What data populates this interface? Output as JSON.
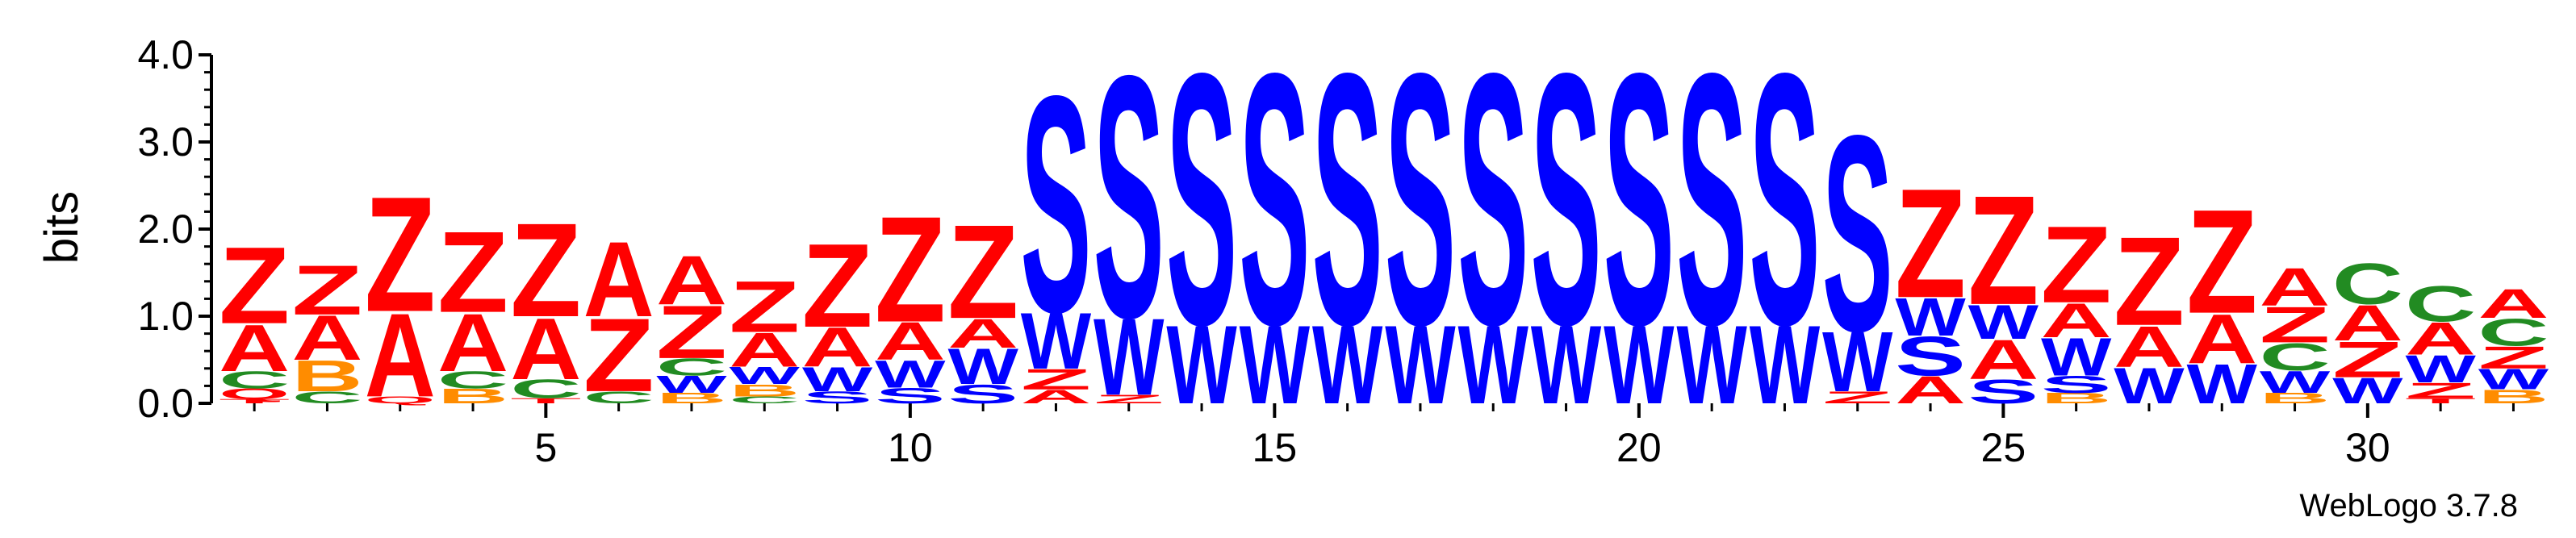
{
  "chart_data": {
    "type": "sequence-logo",
    "ylabel": "bits",
    "ylim": [
      0,
      4.0
    ],
    "y_ticks": [
      "0.0",
      "1.0",
      "2.0",
      "3.0",
      "4.0"
    ],
    "x_ticks": [
      5,
      10,
      15,
      20,
      25,
      30
    ],
    "x_tick_labels": [
      "5",
      "10",
      "15",
      "20",
      "25",
      "30"
    ],
    "footer": "WebLogo 3.7.8",
    "colors": {
      "Z": "#ff0000",
      "A": "#ff0000",
      "S": "#0000ff",
      "W": "#0000ff",
      "C": "#228b22",
      "B": "#ff8c00",
      "Q": "#ff0000",
      "T": "#ff0000",
      "E": "#ff8c00"
    },
    "positions": [
      {
        "pos": 1,
        "stack": [
          [
            "T",
            0.05
          ],
          [
            "Q",
            0.12
          ],
          [
            "C",
            0.2
          ],
          [
            "A",
            0.55
          ],
          [
            "Z",
            0.9
          ]
        ]
      },
      {
        "pos": 2,
        "stack": [
          [
            "C",
            0.14
          ],
          [
            "B",
            0.36
          ],
          [
            "A",
            0.52
          ],
          [
            "Z",
            0.58
          ]
        ]
      },
      {
        "pos": 3,
        "stack": [
          [
            "Q",
            0.08
          ],
          [
            "A",
            0.98
          ],
          [
            "Z",
            1.35
          ]
        ]
      },
      {
        "pos": 4,
        "stack": [
          [
            "B",
            0.17
          ],
          [
            "C",
            0.2
          ],
          [
            "A",
            0.68
          ],
          [
            "Z",
            0.95
          ]
        ]
      },
      {
        "pos": 5,
        "stack": [
          [
            "T",
            0.06
          ],
          [
            "C",
            0.22
          ],
          [
            "A",
            0.72
          ],
          [
            "Z",
            1.1
          ]
        ]
      },
      {
        "pos": 6,
        "stack": [
          [
            "C",
            0.14
          ],
          [
            "Z",
            0.86
          ],
          [
            "A",
            0.88
          ]
        ]
      },
      {
        "pos": 7,
        "stack": [
          [
            "B",
            0.12
          ],
          [
            "W",
            0.2
          ],
          [
            "C",
            0.2
          ],
          [
            "Z",
            0.62
          ],
          [
            "A",
            0.57
          ]
        ]
      },
      {
        "pos": 8,
        "stack": [
          [
            "C",
            0.08
          ],
          [
            "B",
            0.14
          ],
          [
            "W",
            0.2
          ],
          [
            "A",
            0.4
          ],
          [
            "Z",
            0.6
          ]
        ]
      },
      {
        "pos": 9,
        "stack": [
          [
            "S",
            0.14
          ],
          [
            "W",
            0.28
          ],
          [
            "A",
            0.46
          ],
          [
            "Z",
            0.98
          ]
        ]
      },
      {
        "pos": 10,
        "stack": [
          [
            "S",
            0.18
          ],
          [
            "W",
            0.32
          ],
          [
            "A",
            0.44
          ],
          [
            "Z",
            1.24
          ]
        ]
      },
      {
        "pos": 11,
        "stack": [
          [
            "S",
            0.22
          ],
          [
            "W",
            0.42
          ],
          [
            "A",
            0.34
          ],
          [
            "Z",
            1.1
          ]
        ]
      },
      {
        "pos": 12,
        "stack": [
          [
            "A",
            0.16
          ],
          [
            "Z",
            0.24
          ],
          [
            "W",
            0.66
          ],
          [
            "S",
            2.54
          ]
        ]
      },
      {
        "pos": 13,
        "stack": [
          [
            "Z",
            0.1
          ],
          [
            "W",
            0.9
          ],
          [
            "S",
            2.84
          ]
        ]
      },
      {
        "pos": 14,
        "stack": [
          [
            "W",
            0.92
          ],
          [
            "S",
            2.95
          ]
        ]
      },
      {
        "pos": 15,
        "stack": [
          [
            "W",
            0.92
          ],
          [
            "S",
            2.95
          ]
        ]
      },
      {
        "pos": 16,
        "stack": [
          [
            "W",
            0.92
          ],
          [
            "S",
            2.95
          ]
        ]
      },
      {
        "pos": 17,
        "stack": [
          [
            "W",
            0.92
          ],
          [
            "S",
            2.95
          ]
        ]
      },
      {
        "pos": 18,
        "stack": [
          [
            "W",
            0.92
          ],
          [
            "S",
            2.95
          ]
        ]
      },
      {
        "pos": 19,
        "stack": [
          [
            "W",
            0.92
          ],
          [
            "S",
            2.95
          ]
        ]
      },
      {
        "pos": 20,
        "stack": [
          [
            "W",
            0.92
          ],
          [
            "S",
            2.95
          ]
        ]
      },
      {
        "pos": 21,
        "stack": [
          [
            "W",
            0.92
          ],
          [
            "S",
            2.95
          ]
        ]
      },
      {
        "pos": 22,
        "stack": [
          [
            "W",
            0.92
          ],
          [
            "S",
            2.95
          ]
        ]
      },
      {
        "pos": 23,
        "stack": [
          [
            "Z",
            0.14
          ],
          [
            "W",
            0.7
          ],
          [
            "S",
            2.3
          ]
        ]
      },
      {
        "pos": 24,
        "stack": [
          [
            "A",
            0.32
          ],
          [
            "S",
            0.46
          ],
          [
            "W",
            0.44
          ],
          [
            "Z",
            1.28
          ]
        ]
      },
      {
        "pos": 25,
        "stack": [
          [
            "S",
            0.28
          ],
          [
            "A",
            0.46
          ],
          [
            "W",
            0.4
          ],
          [
            "Z",
            1.28
          ]
        ]
      },
      {
        "pos": 26,
        "stack": [
          [
            "B",
            0.12
          ],
          [
            "S",
            0.2
          ],
          [
            "W",
            0.44
          ],
          [
            "A",
            0.4
          ],
          [
            "Z",
            0.9
          ]
        ]
      },
      {
        "pos": 27,
        "stack": [
          [
            "W",
            0.42
          ],
          [
            "A",
            0.48
          ],
          [
            "Z",
            1.04
          ]
        ]
      },
      {
        "pos": 28,
        "stack": [
          [
            "W",
            0.46
          ],
          [
            "A",
            0.58
          ],
          [
            "Z",
            1.22
          ]
        ]
      },
      {
        "pos": 29,
        "stack": [
          [
            "B",
            0.12
          ],
          [
            "W",
            0.26
          ],
          [
            "C",
            0.32
          ],
          [
            "Z",
            0.42
          ],
          [
            "A",
            0.44
          ]
        ]
      },
      {
        "pos": 30,
        "stack": [
          [
            "W",
            0.3
          ],
          [
            "Z",
            0.42
          ],
          [
            "A",
            0.42
          ],
          [
            "C",
            0.48
          ]
        ]
      },
      {
        "pos": 31,
        "stack": [
          [
            "T",
            0.06
          ],
          [
            "Z",
            0.18
          ],
          [
            "W",
            0.32
          ],
          [
            "A",
            0.38
          ],
          [
            "C",
            0.42
          ]
        ]
      },
      {
        "pos": 32,
        "stack": [
          [
            "B",
            0.16
          ],
          [
            "W",
            0.24
          ],
          [
            "Z",
            0.26
          ],
          [
            "C",
            0.32
          ],
          [
            "A",
            0.34
          ]
        ]
      }
    ]
  }
}
